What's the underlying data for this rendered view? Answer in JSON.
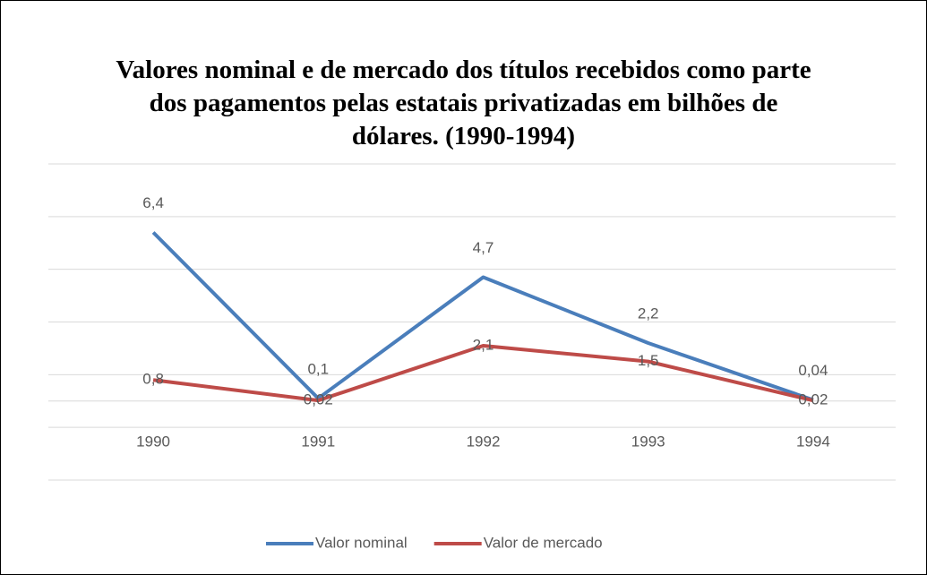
{
  "chart_data": {
    "type": "line",
    "title": "Valores nominal e de mercado dos títulos recebidos como parte dos pagamentos pelas estatais privatizadas em bilhões de dólares. (1990-1994)",
    "categories": [
      "1990",
      "1991",
      "1992",
      "1993",
      "1994"
    ],
    "series": [
      {
        "name": "Valor nominal",
        "color": "#4a7ebb",
        "values": [
          6.4,
          0.1,
          4.7,
          2.2,
          0.04
        ],
        "value_labels": [
          "6,4",
          "0,1",
          "4,7",
          "2,2",
          "0,04"
        ]
      },
      {
        "name": "Valor de mercado",
        "color": "#be4b48",
        "values": [
          0.8,
          0.02,
          2.1,
          1.5,
          0.02
        ],
        "value_labels": [
          "0,8",
          "0,02",
          "2,1",
          "1,5",
          "0,02"
        ]
      }
    ],
    "ylim": [
      -3,
      9
    ],
    "yticks": [
      -3,
      -1,
      0,
      1,
      3,
      5,
      7,
      9
    ],
    "grid": true,
    "legend": "bottom"
  }
}
